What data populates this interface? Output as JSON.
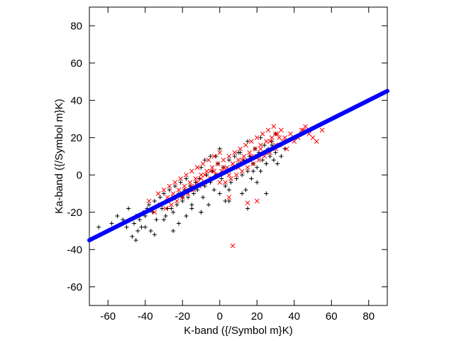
{
  "chart_data": {
    "type": "scatter",
    "title": "",
    "xlabel": "K-band ({/Symbol m}K)",
    "ylabel": "Ka-band ({/Symbol m}K)",
    "xlim": [
      -70,
      90
    ],
    "ylim": [
      -70,
      90
    ],
    "xticks": [
      -60,
      -40,
      -20,
      0,
      20,
      40,
      60,
      80
    ],
    "yticks": [
      -60,
      -40,
      -20,
      0,
      20,
      40,
      60,
      80
    ],
    "grid": false,
    "legend": "none",
    "series": [
      {
        "marker": "plus",
        "color": "#000000",
        "description_points": "black plus markers, broad cloud along y = 0.5x",
        "x": [
          -65,
          -58,
          -55,
          -52,
          -50,
          -49,
          -47,
          -46,
          -45,
          -44,
          -43,
          -42,
          -41,
          -40,
          -39,
          -38,
          -37,
          -36,
          -35,
          -34,
          -33,
          -32,
          -31,
          -30,
          -29,
          -28,
          -27,
          -26,
          -25,
          -24,
          -23,
          -22,
          -21,
          -20,
          -19,
          -18,
          -17,
          -16,
          -15,
          -14,
          -13,
          -12,
          -11,
          -10,
          -9,
          -8,
          -7,
          -6,
          -5,
          -4,
          -3,
          -2,
          -1,
          0,
          1,
          2,
          3,
          4,
          5,
          6,
          7,
          8,
          9,
          10,
          11,
          12,
          13,
          14,
          15,
          16,
          17,
          18,
          19,
          20,
          21,
          22,
          23,
          24,
          25,
          26,
          27,
          28,
          29,
          30,
          31,
          32,
          33,
          35,
          -45,
          -40,
          -35,
          -30,
          -28,
          -25,
          -22,
          -20,
          -18,
          -15,
          -12,
          -10,
          -8,
          -5,
          -2,
          0,
          3,
          5,
          8,
          10,
          12,
          15,
          18,
          20,
          22,
          25,
          28,
          30,
          -10,
          5,
          15,
          -25,
          25,
          -5
        ],
        "y": [
          -28,
          -26,
          -22,
          -24,
          -28,
          -18,
          -33,
          -26,
          -22,
          -30,
          -24,
          -28,
          -20,
          -22,
          -18,
          -16,
          -30,
          -20,
          -14,
          -24,
          -16,
          -12,
          -18,
          -10,
          -22,
          -14,
          -8,
          -18,
          -12,
          -6,
          -16,
          -10,
          -4,
          -14,
          -8,
          -2,
          -12,
          -6,
          -18,
          -10,
          -4,
          -8,
          -2,
          4,
          -12,
          -6,
          0,
          -16,
          -4,
          2,
          -8,
          0,
          6,
          -10,
          -2,
          4,
          -6,
          2,
          8,
          -4,
          4,
          10,
          -2,
          6,
          12,
          0,
          8,
          -8,
          2,
          10,
          -2,
          6,
          14,
          4,
          12,
          2,
          8,
          16,
          6,
          14,
          10,
          18,
          8,
          12,
          6,
          16,
          10,
          14,
          -35,
          -28,
          -32,
          -24,
          -18,
          -20,
          -26,
          -12,
          -22,
          -16,
          -6,
          -20,
          8,
          -2,
          10,
          14,
          -14,
          -8,
          4,
          12,
          -10,
          18,
          2,
          -4,
          20,
          6,
          16,
          22,
          -20,
          -14,
          -18,
          -30,
          -10,
          10
        ]
      },
      {
        "marker": "cross",
        "color": "#ff0000",
        "description_points": "red x markers, dense cloud along y = 0.5x",
        "x": [
          -38,
          -35,
          -33,
          -32,
          -30,
          -29,
          -28,
          -27,
          -26,
          -25,
          -24,
          -23,
          -22,
          -21,
          -20,
          -19,
          -18,
          -17,
          -16,
          -15,
          -14,
          -13,
          -12,
          -11,
          -10,
          -9,
          -8,
          -7,
          -6,
          -5,
          -4,
          -3,
          -2,
          -1,
          0,
          1,
          2,
          3,
          4,
          5,
          6,
          7,
          8,
          9,
          10,
          11,
          12,
          13,
          14,
          15,
          16,
          17,
          18,
          19,
          20,
          21,
          22,
          23,
          24,
          25,
          26,
          27,
          28,
          29,
          30,
          31,
          32,
          33,
          34,
          35,
          36,
          38,
          40,
          42,
          44,
          46,
          48,
          50,
          52,
          55,
          -20,
          -15,
          -10,
          -5,
          0,
          5,
          10,
          15,
          20,
          25,
          30,
          -25,
          -18,
          -12,
          -8,
          -3,
          2,
          7,
          12,
          17,
          22,
          27,
          32,
          7,
          15,
          5,
          -12,
          20,
          30,
          45
        ],
        "y": [
          -14,
          -20,
          -10,
          -16,
          -8,
          -18,
          -12,
          -6,
          -16,
          -10,
          -4,
          -14,
          -8,
          -2,
          -12,
          -6,
          0,
          -10,
          -4,
          2,
          -8,
          -2,
          4,
          -6,
          0,
          6,
          -4,
          2,
          8,
          -2,
          4,
          10,
          0,
          6,
          12,
          2,
          8,
          -4,
          4,
          10,
          -2,
          6,
          12,
          0,
          8,
          14,
          2,
          10,
          16,
          4,
          12,
          18,
          6,
          14,
          20,
          8,
          16,
          22,
          10,
          18,
          24,
          12,
          20,
          26,
          14,
          22,
          16,
          24,
          18,
          20,
          14,
          22,
          18,
          20,
          24,
          26,
          22,
          20,
          18,
          24,
          -10,
          -6,
          -2,
          2,
          -4,
          0,
          4,
          8,
          10,
          12,
          16,
          -12,
          -8,
          -4,
          0,
          2,
          4,
          6,
          8,
          10,
          14,
          18,
          20,
          -38,
          -15,
          -12,
          4,
          -14,
          22,
          24
        ]
      },
      {
        "marker": "filled-circle",
        "color": "#0000ff",
        "description_points": "blue markers forming a dense straight line",
        "x": [
          -70,
          90
        ],
        "y": [
          -35,
          45
        ]
      }
    ]
  }
}
